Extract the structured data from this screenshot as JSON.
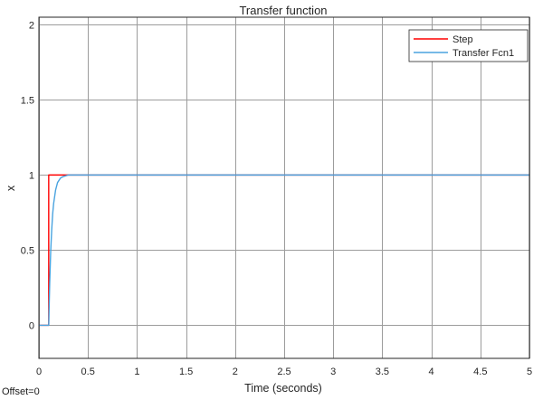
{
  "footer": {
    "offset_label": "Offset=0"
  },
  "chart_data": {
    "type": "line",
    "title": "Transfer function",
    "xlabel": "Time (seconds)",
    "ylabel": "x",
    "xlim": [
      0,
      5
    ],
    "ylim": [
      -0.22,
      2.05
    ],
    "xticks": [
      0,
      0.5,
      1,
      1.5,
      2,
      2.5,
      3,
      3.5,
      4,
      4.5,
      5
    ],
    "yticks": [
      0,
      0.5,
      1,
      1.5,
      2
    ],
    "grid": true,
    "legend_position": "top-right",
    "series": [
      {
        "name": "Step",
        "color": "#ff0000",
        "x": [
          0,
          0.1,
          0.1,
          5
        ],
        "y": [
          0,
          0,
          1,
          1
        ]
      },
      {
        "name": "Transfer Fcn1",
        "color": "#4aa3df",
        "x": [
          0,
          0.1,
          0.11,
          0.12,
          0.13,
          0.14,
          0.15,
          0.17,
          0.19,
          0.22,
          0.25,
          0.3,
          5
        ],
        "y": [
          0,
          0,
          0.28,
          0.49,
          0.63,
          0.74,
          0.81,
          0.9,
          0.95,
          0.98,
          0.99,
          1,
          1
        ]
      }
    ]
  }
}
